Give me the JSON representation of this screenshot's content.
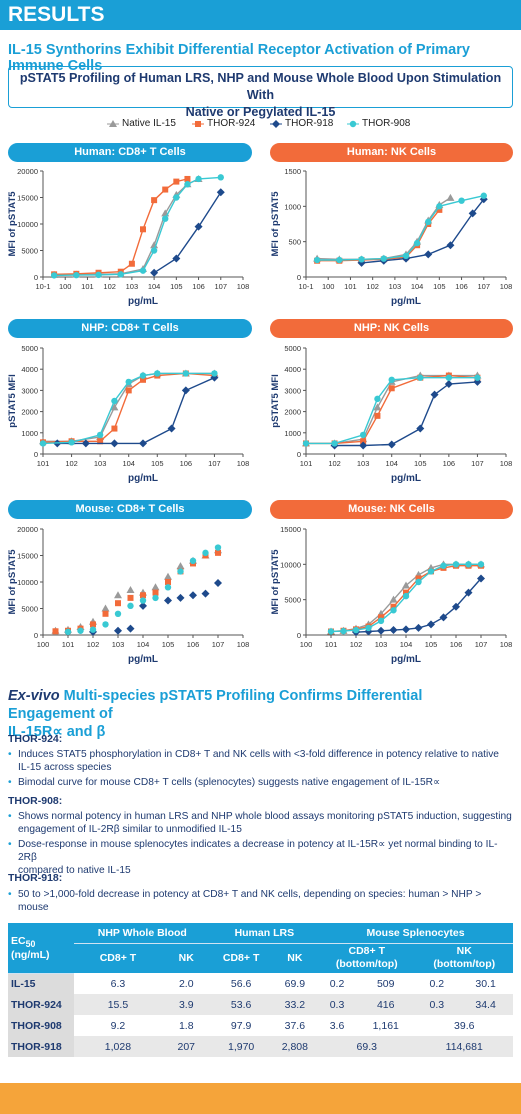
{
  "banner": "RESULTS",
  "heading": "IL-15 Synthorins Exhibit Differential Receptor Activation of Primary Immune Cells",
  "subtitle_1": "pSTAT5 Profiling of Human LRS, NHP and Mouse Whole Blood Upon Stimulation With",
  "subtitle_2": "Native or Pegylated IL-15",
  "legend": [
    {
      "name": "Native IL-15",
      "color": "#9a9a9a",
      "shape": "triangle"
    },
    {
      "name": "THOR-924",
      "color": "#f26b3a",
      "shape": "square"
    },
    {
      "name": "THOR-918",
      "color": "#1e4a8c",
      "shape": "diamond"
    },
    {
      "name": "THOR-908",
      "color": "#39c9d3",
      "shape": "circle"
    }
  ],
  "chart_data": [
    {
      "title": "Human: CD8+ T Cells",
      "type": "scatter",
      "xlabel": "pg/mL",
      "ylabel": "MFI of pSTAT5",
      "xscale": "log",
      "xlim": [
        -1,
        8
      ],
      "ylim": [
        0,
        20000
      ],
      "yticks": [
        "0",
        "5000",
        "10000",
        "15000",
        "20000"
      ],
      "xticks": [
        "10-1",
        "100",
        "101",
        "102",
        "103",
        "104",
        "105",
        "106",
        "107",
        "108"
      ],
      "series": [
        {
          "name": "Native IL-15",
          "x": [
            -0.5,
            0.5,
            1.5,
            2.5,
            3.5,
            4,
            4.5,
            5,
            5.5,
            6
          ],
          "y": [
            400,
            450,
            500,
            600,
            1500,
            6000,
            12000,
            15500,
            17500,
            18500
          ]
        },
        {
          "name": "THOR-924",
          "x": [
            -0.5,
            0.5,
            1.5,
            2.5,
            3,
            3.5,
            4,
            4.5,
            5,
            5.5
          ],
          "y": [
            500,
            600,
            800,
            1000,
            2500,
            9000,
            14500,
            16500,
            18000,
            18500
          ]
        },
        {
          "name": "THOR-918",
          "x": [
            4,
            5,
            6,
            7
          ],
          "y": [
            800,
            3500,
            9500,
            16000
          ]
        },
        {
          "name": "THOR-908",
          "x": [
            -0.5,
            0.5,
            1.5,
            2.5,
            3.5,
            4,
            4.5,
            5,
            5.5,
            6,
            7
          ],
          "y": [
            300,
            350,
            400,
            500,
            1200,
            5000,
            11000,
            15000,
            17500,
            18500,
            18800
          ]
        }
      ]
    },
    {
      "title": "Human: NK Cells",
      "type": "scatter",
      "xlabel": "pg/mL",
      "ylabel": "MFI of pSTAT5",
      "xscale": "log",
      "xlim": [
        -1,
        8
      ],
      "ylim": [
        0,
        1500
      ],
      "yticks": [
        "0",
        "500",
        "1000",
        "1500"
      ],
      "xticks": [
        "10-1",
        "100",
        "101",
        "102",
        "103",
        "104",
        "105",
        "106",
        "107",
        "108"
      ],
      "series": [
        {
          "name": "Native IL-15",
          "x": [
            -0.5,
            0.5,
            1.5,
            2.5,
            3.5,
            4,
            4.5,
            5,
            5.5
          ],
          "y": [
            260,
            250,
            250,
            260,
            320,
            500,
            800,
            1020,
            1120
          ]
        },
        {
          "name": "THOR-924",
          "x": [
            -0.5,
            0.5,
            1.5,
            2.5,
            3.5,
            4,
            4.5,
            5
          ],
          "y": [
            230,
            230,
            240,
            250,
            280,
            450,
            750,
            950
          ]
        },
        {
          "name": "THOR-918",
          "x": [
            1.5,
            2.5,
            3.5,
            4.5,
            5.5,
            6.5,
            7
          ],
          "y": [
            200,
            230,
            260,
            320,
            450,
            900,
            1100
          ]
        },
        {
          "name": "THOR-908",
          "x": [
            -0.5,
            0.5,
            1.5,
            2.5,
            3.5,
            4,
            4.5,
            5,
            6,
            7
          ],
          "y": [
            240,
            240,
            250,
            260,
            300,
            480,
            780,
            1000,
            1080,
            1150
          ]
        }
      ]
    },
    {
      "title": "NHP: CD8+ T Cells",
      "type": "scatter",
      "xlabel": "pg/mL",
      "ylabel": "pSTAT5 MFI",
      "xscale": "log",
      "xlim": [
        1,
        8
      ],
      "ylim": [
        0,
        5000
      ],
      "yticks": [
        "0",
        "1000",
        "2000",
        "3000",
        "4000",
        "5000"
      ],
      "xticks": [
        "101",
        "102",
        "103",
        "104",
        "105",
        "106",
        "107",
        "108"
      ],
      "series": [
        {
          "name": "Native IL-15",
          "x": [
            1,
            2,
            3,
            3.5,
            4,
            4.5,
            5,
            6,
            7
          ],
          "y": [
            600,
            600,
            800,
            2200,
            3300,
            3700,
            3800,
            3800,
            3800
          ]
        },
        {
          "name": "THOR-924",
          "x": [
            1,
            2,
            3,
            3.5,
            4,
            4.5,
            5,
            6,
            7
          ],
          "y": [
            550,
            600,
            600,
            1200,
            3000,
            3500,
            3700,
            3800,
            3700
          ]
        },
        {
          "name": "THOR-918",
          "x": [
            1.5,
            2.5,
            3.5,
            4.5,
            5.5,
            6,
            7
          ],
          "y": [
            500,
            500,
            500,
            500,
            1200,
            3000,
            3600
          ]
        },
        {
          "name": "THOR-908",
          "x": [
            1,
            2,
            3,
            3.5,
            4,
            4.5,
            5,
            6,
            7
          ],
          "y": [
            500,
            550,
            900,
            2500,
            3400,
            3700,
            3800,
            3800,
            3800
          ]
        }
      ]
    },
    {
      "title": "NHP: NK Cells",
      "type": "scatter",
      "xlabel": "pg/mL",
      "ylabel": "pSTAT5 MFI",
      "xscale": "log",
      "xlim": [
        1,
        8
      ],
      "ylim": [
        0,
        5000
      ],
      "yticks": [
        "0",
        "1000",
        "2000",
        "3000",
        "4000",
        "5000"
      ],
      "xticks": [
        "101",
        "102",
        "103",
        "104",
        "105",
        "106",
        "107",
        "108"
      ],
      "series": [
        {
          "name": "Native IL-15",
          "x": [
            1,
            2,
            3,
            3.5,
            4,
            5,
            6,
            7
          ],
          "y": [
            500,
            500,
            700,
            2200,
            3400,
            3700,
            3700,
            3700
          ]
        },
        {
          "name": "THOR-924",
          "x": [
            1,
            2,
            3,
            3.5,
            4,
            5,
            6,
            7
          ],
          "y": [
            500,
            500,
            600,
            1800,
            3100,
            3600,
            3700,
            3600
          ]
        },
        {
          "name": "THOR-918",
          "x": [
            2,
            3,
            4,
            5,
            5.5,
            6,
            7
          ],
          "y": [
            400,
            400,
            450,
            1200,
            2800,
            3300,
            3400
          ]
        },
        {
          "name": "THOR-908",
          "x": [
            1,
            2,
            3,
            3.5,
            4,
            5,
            6,
            7
          ],
          "y": [
            500,
            500,
            900,
            2600,
            3500,
            3600,
            3600,
            3600
          ]
        }
      ]
    },
    {
      "title": "Mouse: CD8+ T Cells",
      "type": "scatter",
      "xlabel": "pg/mL",
      "ylabel": "MFI of pSTAT5",
      "xscale": "log",
      "xlim": [
        0,
        8
      ],
      "ylim": [
        0,
        20000
      ],
      "yticks": [
        "0",
        "5000",
        "10000",
        "15000",
        "20000"
      ],
      "xticks": [
        "100",
        "101",
        "102",
        "103",
        "104",
        "105",
        "106",
        "107",
        "108"
      ],
      "series": [
        {
          "name": "Native IL-15",
          "x": [
            0.5,
            1,
            1.5,
            2,
            2.5,
            3,
            3.5,
            4,
            4.5,
            5,
            5.5,
            6,
            6.5,
            7
          ],
          "y": [
            800,
            1000,
            1500,
            2500,
            5000,
            7500,
            8500,
            8000,
            9000,
            11000,
            13000,
            14000,
            15000,
            16000
          ]
        },
        {
          "name": "THOR-924",
          "x": [
            0.5,
            1,
            1.5,
            2,
            2.5,
            3,
            3.5,
            4,
            4.5,
            5,
            5.5,
            6,
            6.5,
            7
          ],
          "y": [
            700,
            800,
            1200,
            2000,
            4000,
            6000,
            7000,
            7500,
            8000,
            10000,
            12000,
            13500,
            15000,
            15500
          ]
        },
        {
          "name": "THOR-918",
          "x": [
            2,
            3,
            3.5,
            4,
            5,
            5.5,
            6,
            6.5,
            7
          ],
          "y": [
            600,
            800,
            1200,
            5500,
            6500,
            7000,
            7500,
            7800,
            9800
          ]
        },
        {
          "name": "THOR-908",
          "x": [
            1,
            1.5,
            2,
            2.5,
            3,
            3.5,
            4,
            4.5,
            5,
            5.5,
            6,
            6.5,
            7
          ],
          "y": [
            600,
            800,
            1000,
            2000,
            4000,
            5500,
            6500,
            7000,
            9000,
            12000,
            14000,
            15500,
            16500
          ]
        }
      ]
    },
    {
      "title": "Mouse: NK Cells",
      "type": "scatter",
      "xlabel": "pg/mL",
      "ylabel": "MFI of pSTAT5",
      "xscale": "log",
      "xlim": [
        0,
        8
      ],
      "ylim": [
        0,
        15000
      ],
      "yticks": [
        "0",
        "5000",
        "10000",
        "15000"
      ],
      "xticks": [
        "100",
        "101",
        "102",
        "103",
        "104",
        "105",
        "106",
        "107",
        "108"
      ],
      "series": [
        {
          "name": "Native IL-15",
          "x": [
            1,
            1.5,
            2,
            2.5,
            3,
            3.5,
            4,
            4.5,
            5,
            5.5,
            6,
            6.5,
            7
          ],
          "y": [
            500,
            600,
            900,
            1500,
            3000,
            5000,
            7000,
            8500,
            9500,
            10000,
            10000,
            10000,
            10000
          ]
        },
        {
          "name": "THOR-924",
          "x": [
            1,
            1.5,
            2,
            2.5,
            3,
            3.5,
            4,
            4.5,
            5,
            5.5,
            6,
            6.5,
            7
          ],
          "y": [
            500,
            600,
            800,
            1200,
            2500,
            4000,
            6000,
            8000,
            9000,
            9500,
            9800,
            9800,
            9800
          ]
        },
        {
          "name": "THOR-918",
          "x": [
            2,
            2.5,
            3,
            3.5,
            4,
            4.5,
            5,
            5.5,
            6,
            6.5,
            7
          ],
          "y": [
            400,
            500,
            600,
            700,
            800,
            1000,
            1500,
            2500,
            4000,
            6000,
            8000
          ]
        },
        {
          "name": "THOR-908",
          "x": [
            1,
            1.5,
            2,
            2.5,
            3,
            3.5,
            4,
            4.5,
            5,
            5.5,
            6,
            6.5,
            7
          ],
          "y": [
            500,
            550,
            700,
            1000,
            2000,
            3500,
            5500,
            7500,
            9000,
            9800,
            10000,
            10000,
            10000
          ]
        }
      ]
    }
  ],
  "h2_italic": "Ex-vivo",
  "h2_rest": " Multi-species pSTAT5 Profiling Confirms Differential Engagement of",
  "h2_line2": "IL-15R∝ and β",
  "sections": [
    {
      "title": "THOR-924:",
      "bullets": [
        {
          "l1": "Induces STAT5 phosphorylation in CD8+ T and NK cells with <3-fold difference in potency relative to native",
          "l2": "IL-15 across species"
        },
        {
          "l1": "Bimodal curve for mouse CD8+ T cells (splenocytes) suggests native engagement of IL-15R∝",
          "l2": ""
        }
      ]
    },
    {
      "title": "THOR-908:",
      "bullets": [
        {
          "l1": "Shows normal potency in human LRS and NHP whole blood assays monitoring pSTAT5 induction, suggesting",
          "l2": "engagement of IL-2Rβ similar to unmodified IL-15"
        },
        {
          "l1": "Dose-response in mouse splenocytes indicates a decrease in potency at IL-15R∝ yet normal binding to IL-2Rβ",
          "l2": "compared to native IL-15"
        }
      ]
    },
    {
      "title": "THOR-918:",
      "bullets": [
        {
          "l1": "50 to >1,000-fold decrease in potency at CD8+ T and NK cells, depending on species: human > NHP > mouse",
          "l2": ""
        }
      ]
    }
  ],
  "table": {
    "groups": [
      "NHP Whole Blood",
      "Human LRS",
      "Mouse Splenocytes"
    ],
    "ec50_a": "EC",
    "ec50_b": "50",
    "ec50_c": "(ng/mL)",
    "sub": [
      "CD8+ T",
      "NK",
      "CD8+ T",
      "NK"
    ],
    "mouse_cd8_1": "CD8+ T",
    "mouse_cd8_2": "(bottom/top)",
    "mouse_nk_1": "NK",
    "mouse_nk_2": "(bottom/top)",
    "rows": [
      [
        "IL-15",
        "6.3",
        "2.0",
        "56.6",
        "69.9",
        "0.2",
        "509",
        "0.2",
        "30.1"
      ],
      [
        "THOR-924",
        "15.5",
        "3.9",
        "53.6",
        "33.2",
        "0.3",
        "416",
        "0.3",
        "34.4"
      ],
      [
        "THOR-908",
        "9.2",
        "1.8",
        "97.9",
        "37.6",
        "3.6",
        "1,161",
        "39.6",
        ""
      ],
      [
        "THOR-918",
        "1,028",
        "207",
        "1,970",
        "2,808",
        "69.3",
        "",
        "114,681",
        ""
      ]
    ]
  }
}
